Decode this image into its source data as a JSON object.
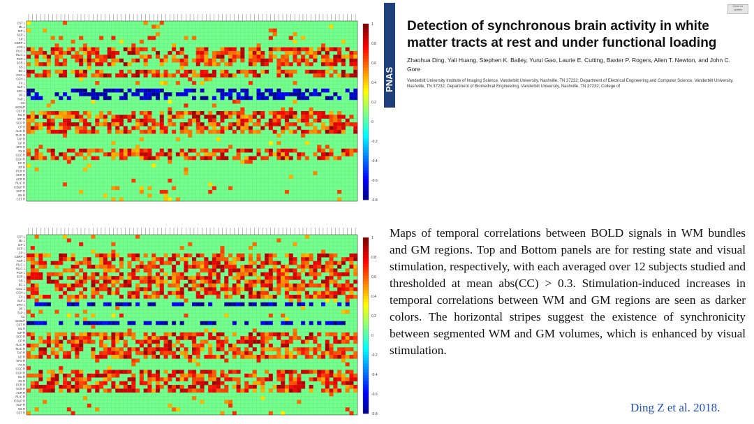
{
  "header": {
    "journal_logo": "PNAS",
    "badge": "Check for updates",
    "title": "Detection of synchronous brain activity in white matter tracts at rest and under functional loading",
    "authors": "Zhaohua Ding, Yali Huang, Stephen K. Bailey, Yurui Gao, Laurie E. Cutting, Baxter P. Rogers, Allen T. Newton, and John C. Gore",
    "affiliations": "Vanderbilt University Institute of Imaging Science, Vanderbilt University, Nashville, TN 37232; Department of Electrical Engineering and Computer Science, Vanderbilt University, Nashville, TN 37232; Department of Biomedical Engineering, Vanderbilt University, Nashville, TN 37232; College of"
  },
  "caption": "Maps of temporal correlations between BOLD signals in WM bundles and GM regions. Top and Bottom panels are for resting state and visual stimulation, respectively, with each averaged over 12 subjects studied and thresholded at mean abs(CC) > 0.3. Stimulation-induced increases in temporal correlations between WM and GM regions are seen as darker colors. The horizontal stripes suggest the existence of synchronicity between segmented WM and GM volumes, which is enhanced by visual stimulation.",
  "citation": "Ding Z et al. 2018.",
  "colors": {
    "background": "#4fc9a8",
    "accent": "#1f3f7a",
    "citation": "#1f4fbf"
  },
  "chart_data": [
    {
      "type": "heatmap",
      "panel": "top",
      "condition": "resting state",
      "threshold": 0.3,
      "colorbar": {
        "range": [
          -0.8,
          1
        ],
        "ticks": [
          1,
          0.8,
          0.6,
          0.4,
          0.2,
          0,
          -0.2,
          -0.4,
          -0.6,
          -0.8
        ]
      },
      "row_labels_visible": [
        "CST L",
        "ML L",
        "ICP L",
        "SCP L",
        "CP L",
        "CBRP L",
        "ACR L",
        "PLIC L",
        "RLIC L",
        "PCR L",
        "SCR L",
        "SS L",
        "EC L",
        "CGC L",
        "CGH L",
        "FX L",
        "SLF L",
        "SFO L",
        "UF L",
        "TAP L",
        "CC",
        "mCBLP",
        "CST R",
        "ML R",
        "ICP R",
        "SCP R",
        "CP R",
        "ALIC R",
        "PLIC R",
        "TAP R",
        "UF R",
        "SFO R",
        "FX R",
        "CGC R",
        "CGH R",
        "EC R",
        "SS R",
        "PCR R",
        "SCR R",
        "ACR R",
        "RLIC R",
        "ICBLP R",
        "SCP R",
        "ML R",
        "CST R"
      ],
      "strong_positive_rows": [
        7,
        8,
        9,
        10,
        11,
        13,
        14,
        24,
        25,
        26,
        27,
        28,
        29,
        34,
        35,
        36
      ],
      "negative_rows": [
        18,
        19,
        20
      ],
      "rows": 48,
      "cols": 82
    },
    {
      "type": "heatmap",
      "panel": "bottom",
      "condition": "visual stimulation",
      "threshold": 0.3,
      "colorbar": {
        "range": [
          -0.8,
          1
        ],
        "ticks": [
          1,
          0.8,
          0.6,
          0.4,
          0.2,
          0,
          -0.2,
          -0.4,
          -0.6,
          -0.8
        ]
      },
      "row_labels_visible": [
        "CST L",
        "ML L",
        "ICP L",
        "SCP L",
        "CP L",
        "CBRP L",
        "ACR L",
        "PLIC L",
        "RLIC L",
        "PCR L",
        "SCR L",
        "SS L",
        "EC L",
        "CGC L",
        "CGH L",
        "FX L",
        "SLF L",
        "SFO L",
        "UF L",
        "TAP L",
        "CC",
        "mCBLP",
        "CST R",
        "ML R",
        "ICP R",
        "SCP R",
        "CP R",
        "ALIC R",
        "PLIC R",
        "TAP R",
        "UF R",
        "SFO R",
        "FX R",
        "CGC R",
        "CGH R",
        "EC R",
        "SS R",
        "PCR R",
        "SCR R",
        "ACR R",
        "RLIC R",
        "ICBLP R",
        "SCP R",
        "ML R",
        "CST R"
      ],
      "strong_positive_rows": [
        5,
        6,
        7,
        8,
        9,
        10,
        11,
        12,
        13,
        14,
        15,
        16,
        26,
        27,
        28,
        29,
        30,
        31,
        32,
        36,
        37,
        38,
        39,
        40,
        41
      ],
      "negative_rows": [
        18,
        23
      ],
      "rows": 48,
      "cols": 82
    }
  ]
}
